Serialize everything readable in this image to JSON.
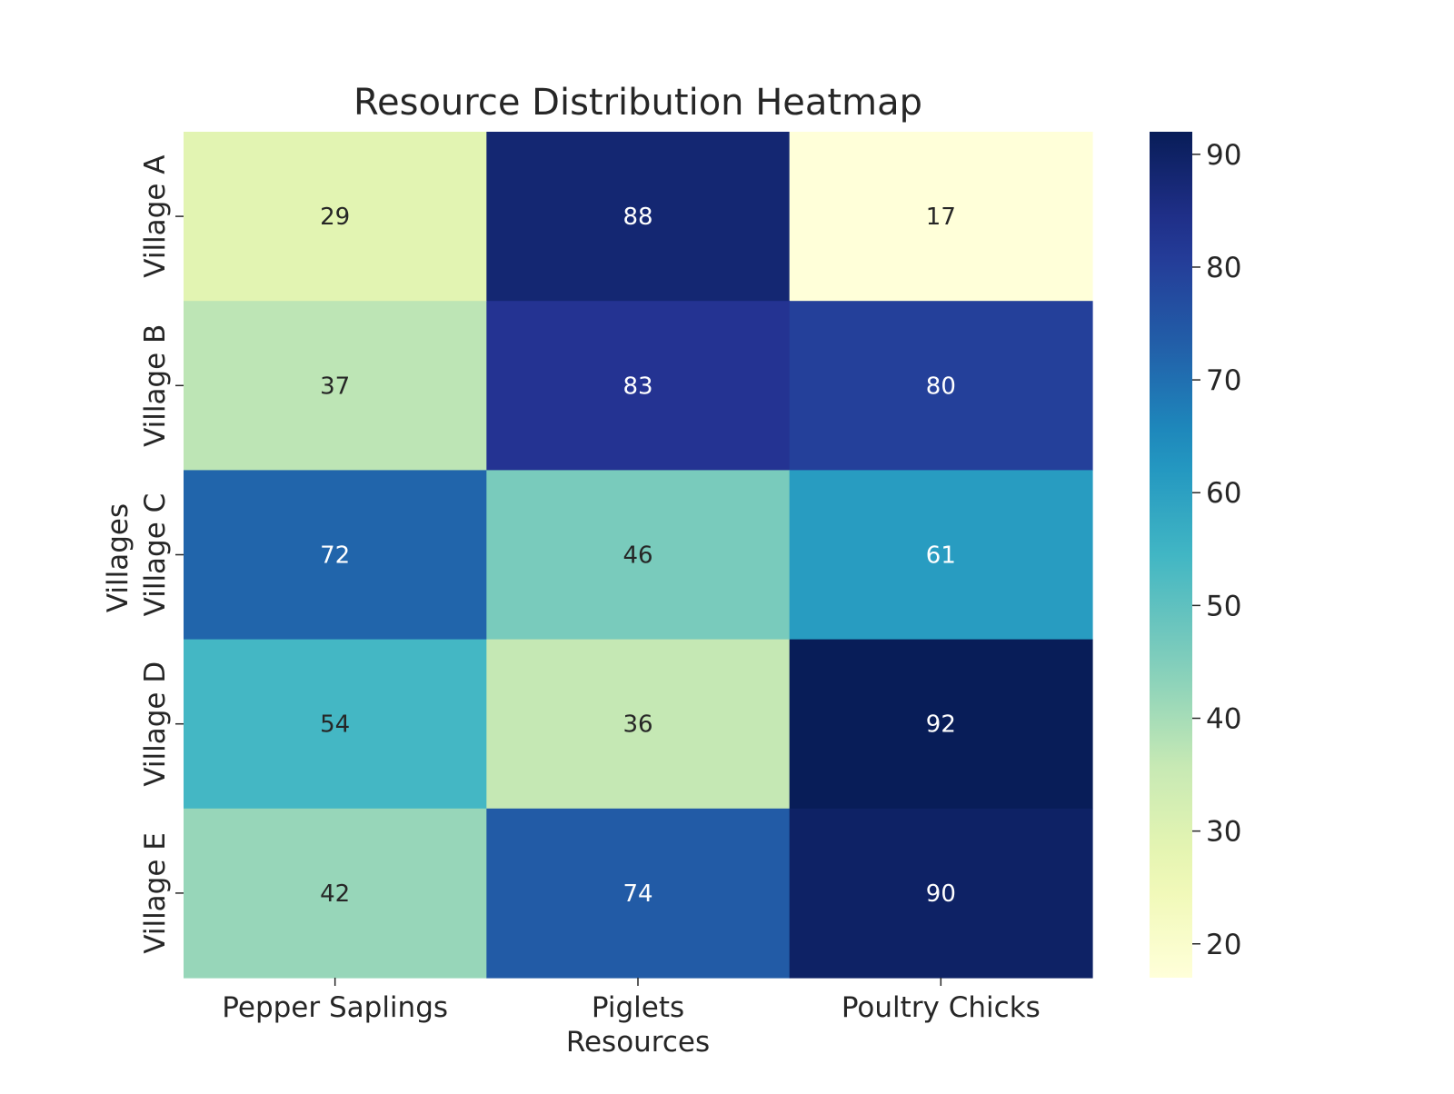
{
  "chart_data": {
    "type": "heatmap",
    "title": "Resource Distribution Heatmap",
    "xlabel": "Resources",
    "ylabel": "Villages",
    "x_categories": [
      "Pepper Saplings",
      "Piglets",
      "Poultry Chicks"
    ],
    "y_categories": [
      "Village A",
      "Village B",
      "Village C",
      "Village D",
      "Village E"
    ],
    "values": [
      [
        29,
        88,
        17
      ],
      [
        37,
        83,
        80
      ],
      [
        72,
        46,
        61
      ],
      [
        54,
        36,
        92
      ],
      [
        42,
        74,
        90
      ]
    ],
    "colorbar": {
      "range": [
        17,
        92
      ],
      "ticks": [
        "20",
        "30",
        "40",
        "50",
        "60",
        "70",
        "80",
        "90"
      ],
      "colormap": "YlGnBu"
    },
    "annotation_colors": {
      "dark_text": "#262626",
      "light_text": "#ffffff"
    },
    "grid": false,
    "legend": "colorbar-right"
  }
}
